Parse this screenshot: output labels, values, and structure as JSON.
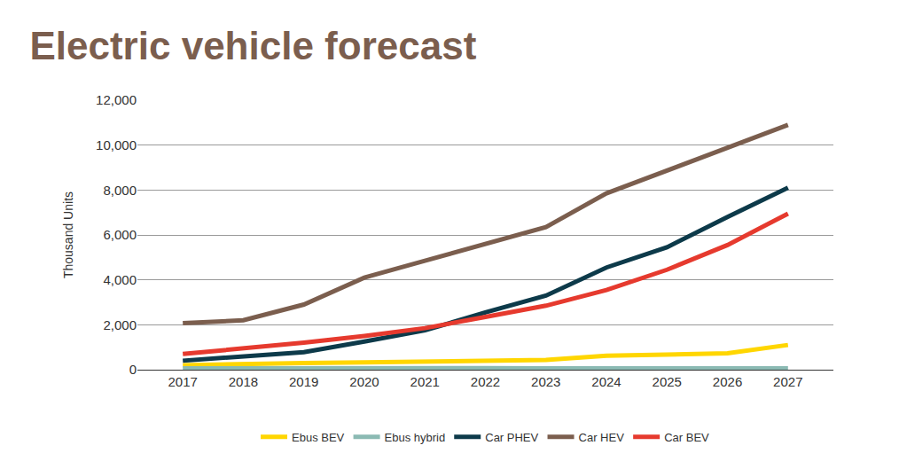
{
  "chart_data": {
    "type": "line",
    "title": "Electric vehicle forecast",
    "y_label": "Thousand Units",
    "categories": [
      "2017",
      "2018",
      "2019",
      "2020",
      "2021",
      "2022",
      "2023",
      "2024",
      "2025",
      "2026",
      "2027"
    ],
    "series": [
      {
        "name": "Ebus BEV",
        "color": "#ffd600",
        "values": [
          200,
          270,
          300,
          330,
          370,
          400,
          430,
          620,
          680,
          730,
          1100
        ]
      },
      {
        "name": "Ebus hybrid",
        "color": "#8bbab3",
        "values": [
          60,
          70,
          70,
          70,
          70,
          70,
          60,
          60,
          60,
          60,
          60
        ]
      },
      {
        "name": "Car PHEV",
        "color": "#0d3a4a",
        "values": [
          400,
          580,
          780,
          1250,
          1750,
          2550,
          3300,
          4550,
          5450,
          6800,
          8100
        ]
      },
      {
        "name": "Car HEV",
        "color": "#7b5e4e",
        "values": [
          2070,
          2200,
          2900,
          4100,
          4850,
          5600,
          6350,
          7850,
          8850,
          9900,
          10900
        ]
      },
      {
        "name": "Car BEV",
        "color": "#e63a2e",
        "values": [
          700,
          950,
          1200,
          1500,
          1850,
          2350,
          2850,
          3550,
          4450,
          5550,
          6950
        ]
      }
    ],
    "ylim": [
      0,
      12000
    ],
    "yticks": [
      0,
      {
        "value": 2000,
        "label": "2,000"
      },
      {
        "value": 4000,
        "label": "4,000"
      },
      {
        "value": 6000,
        "label": "6,000"
      },
      {
        "value": 8000,
        "label": "8,000"
      },
      {
        "value": 10000,
        "label": "10,000"
      },
      {
        "value": 12000,
        "label": "12,000"
      }
    ],
    "grid": true,
    "legend": "bottom"
  }
}
